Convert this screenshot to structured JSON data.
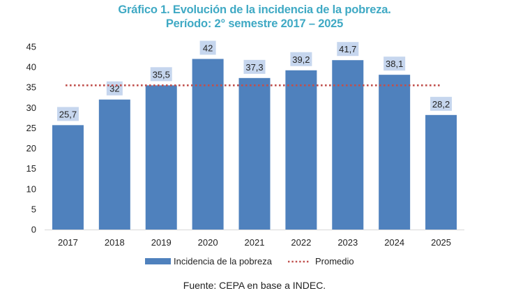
{
  "chart_data": {
    "type": "bar",
    "title": "Gráfico 1. Evolución de la incidencia de la pobreza.",
    "subtitle": "Período: 2° semestre 2017 – 2025",
    "categories": [
      "2017",
      "2018",
      "2019",
      "2020",
      "2021",
      "2022",
      "2023",
      "2024",
      "2025"
    ],
    "series": [
      {
        "name": "Incidencia de la pobreza",
        "type": "bar",
        "color": "#4f81bd",
        "values": [
          25.7,
          32,
          35.5,
          42,
          37.3,
          39.2,
          41.7,
          38.1,
          28.2
        ],
        "labels": [
          "25,7",
          "32",
          "35,5",
          "42",
          "37,3",
          "39,2",
          "41,7",
          "38,1",
          "28,2"
        ]
      },
      {
        "name": "Promedio",
        "type": "line",
        "style": "dotted",
        "color": "#c0504d",
        "value": 35.5
      }
    ],
    "ylim": [
      0,
      45
    ],
    "yticks": [
      0,
      5,
      10,
      15,
      20,
      25,
      30,
      35,
      40,
      45
    ],
    "grid": false,
    "legend": "bottom",
    "label_box_color": "#c6d6ee",
    "source": "Fuente: CEPA en base a INDEC."
  }
}
